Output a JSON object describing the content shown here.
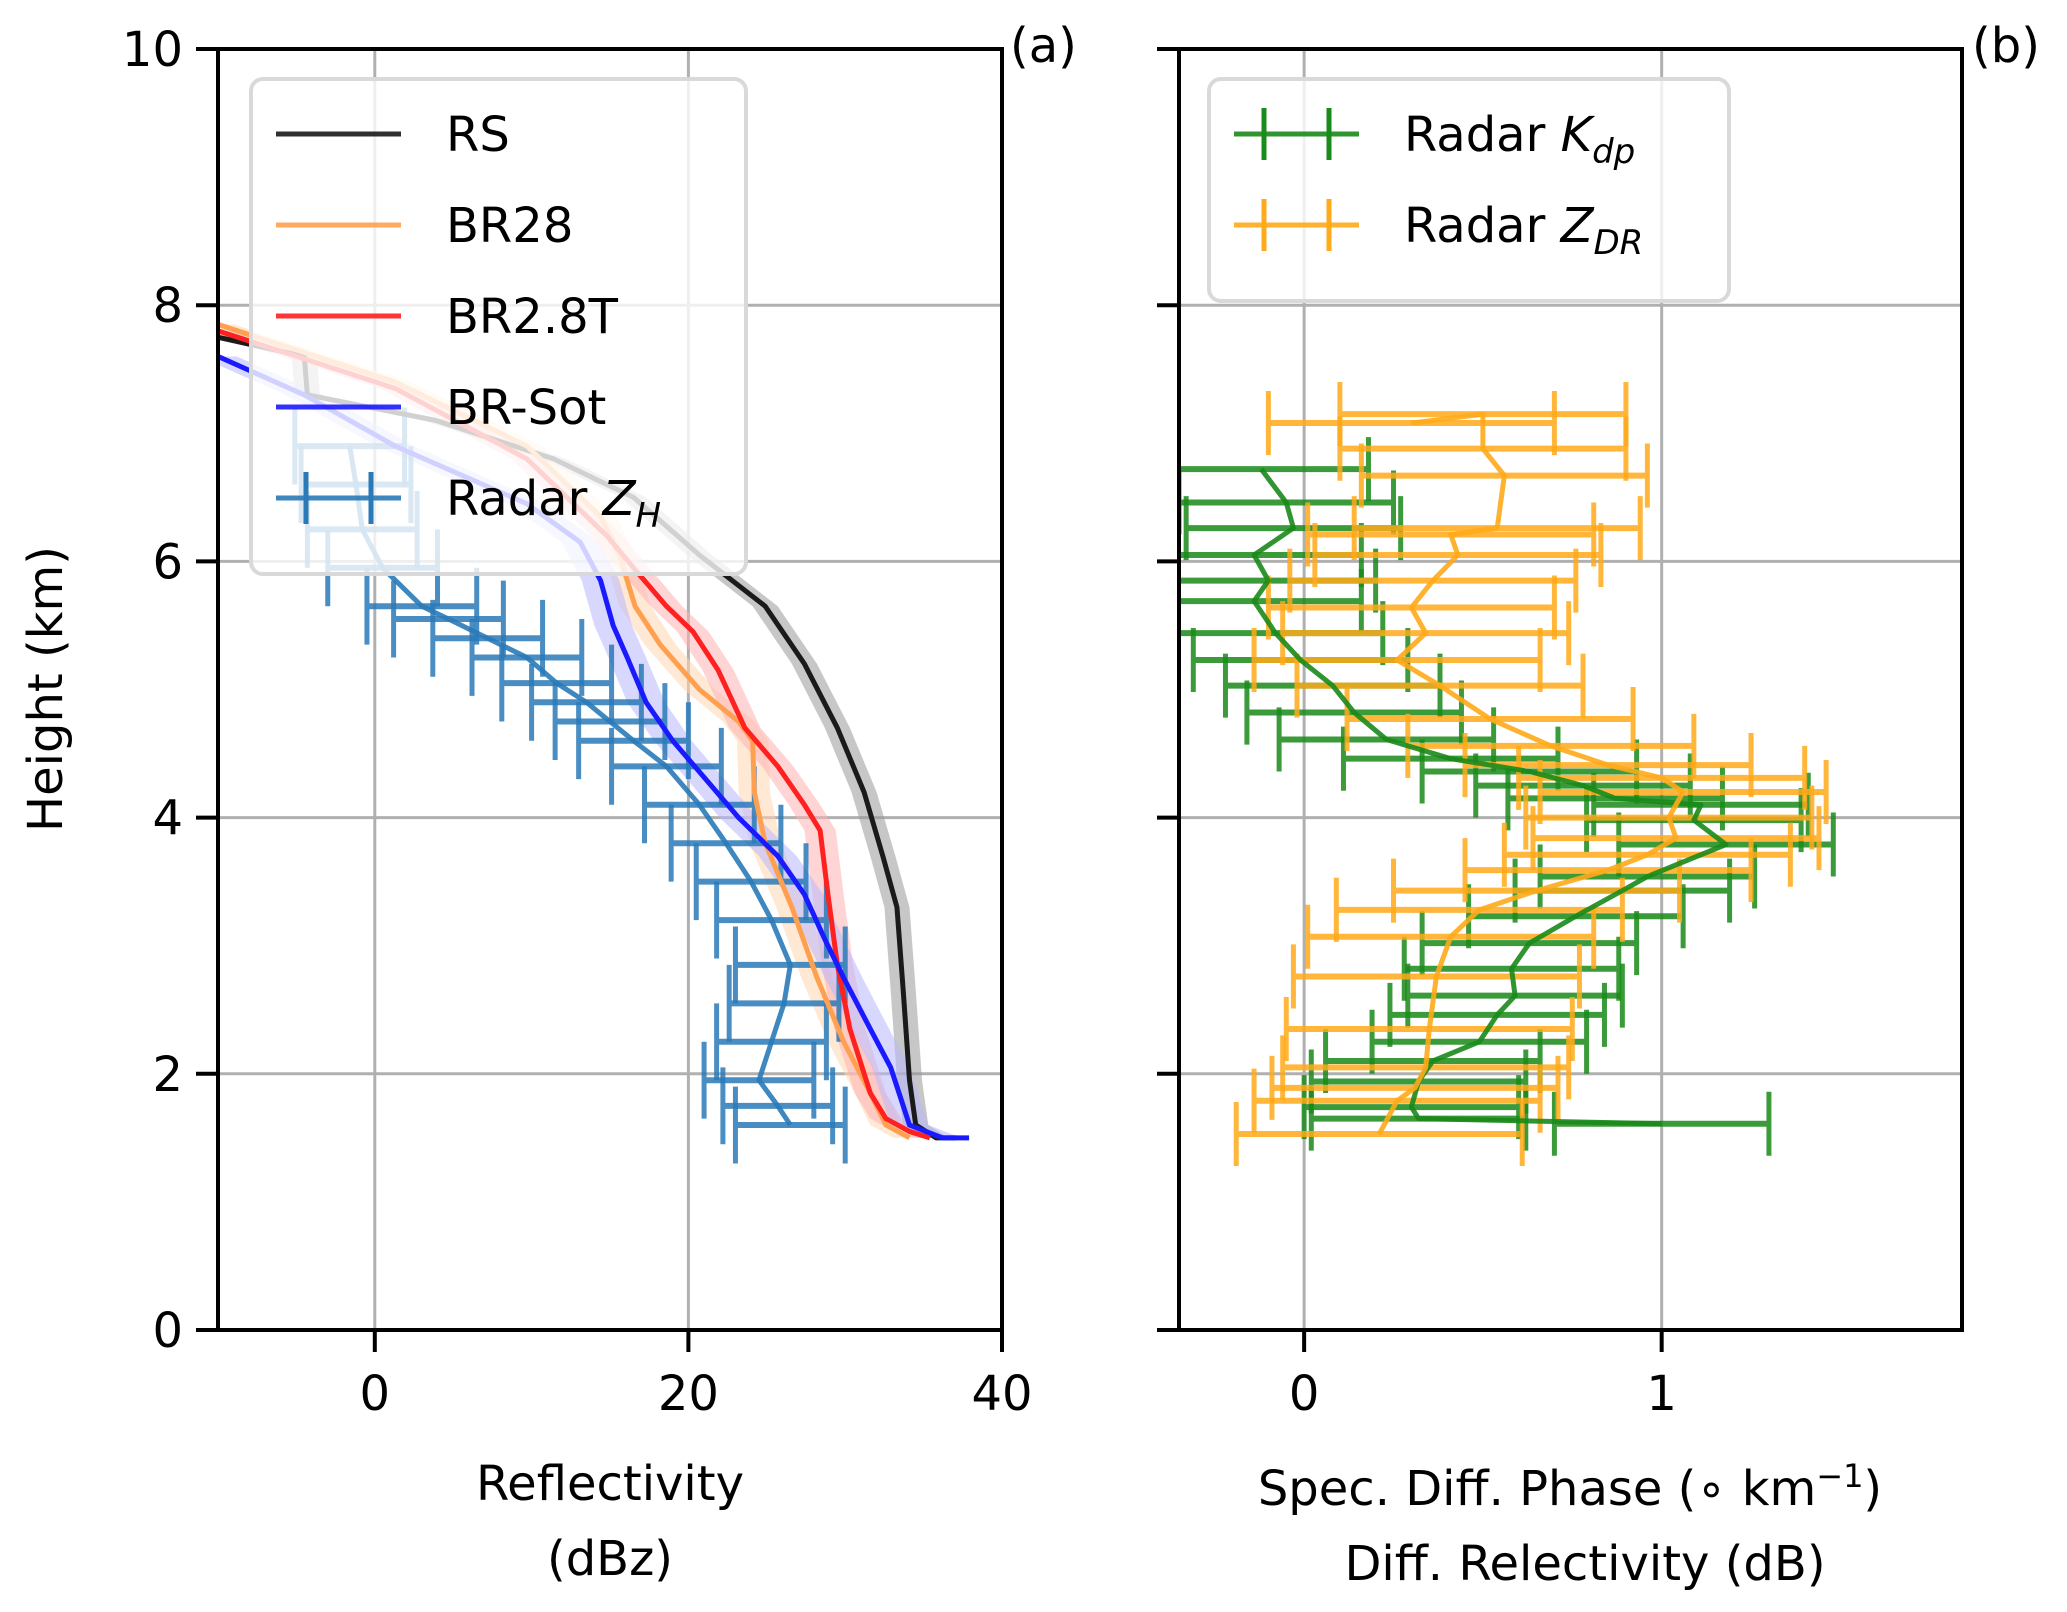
{
  "figure": {
    "panel_labels": [
      "(a)",
      "(b)"
    ]
  },
  "chart_data": [
    {
      "panel": "(a)",
      "type": "line",
      "title": "",
      "xlabel": "Reflectivity\n(dBz)",
      "ylabel": "Height (km)",
      "xlim": [
        -10,
        40
      ],
      "ylim": [
        0,
        10
      ],
      "xticks": [
        0,
        20,
        40
      ],
      "yticks": [
        0,
        2,
        4,
        6,
        8,
        10
      ],
      "grid": true,
      "legend_position": "top-left",
      "series": [
        {
          "name": "RS",
          "color": "#1a1a1a",
          "band_color": "#999999",
          "band_halfwidth": 0.8,
          "kind": "line",
          "x": [
            -10,
            -4.5,
            -4.3,
            3.9,
            11.4,
            16.5,
            20.7,
            24.9,
            27.4,
            29.5,
            31.2,
            32.4,
            33.3,
            33.7,
            34.1,
            34.5,
            35.8,
            37.1
          ],
          "y": [
            7.75,
            7.6,
            7.3,
            7.1,
            6.8,
            6.5,
            6.05,
            5.65,
            5.2,
            4.7,
            4.2,
            3.7,
            3.3,
            2.65,
            1.95,
            1.6,
            1.5,
            1.5
          ]
        },
        {
          "name": "BR28",
          "color": "#ffa050",
          "band_color": "#ffd6b0",
          "band_halfwidth": 1.0,
          "kind": "line",
          "x": [
            -10,
            1.3,
            9.7,
            14.4,
            15.6,
            16.6,
            18.2,
            20.7,
            23.2,
            24.1,
            24.2,
            24.9,
            26.6,
            28.2,
            29.9,
            31.6,
            32.6,
            34.1
          ],
          "y": [
            7.85,
            7.4,
            6.9,
            6.35,
            6.05,
            5.65,
            5.35,
            5.0,
            4.75,
            4.6,
            4.2,
            3.8,
            3.3,
            2.75,
            2.25,
            1.85,
            1.6,
            1.5
          ]
        },
        {
          "name": "BR2.8T",
          "color": "#ff2020",
          "band_color": "#ffb0b0",
          "band_halfwidth": 1.0,
          "kind": "line",
          "x": [
            -10,
            1.3,
            9.7,
            14.8,
            16.5,
            18.6,
            20.3,
            21.9,
            23.6,
            25.7,
            27.4,
            28.4,
            28.9,
            29.5,
            30.3,
            31.6,
            32.6,
            34.1,
            35.4
          ],
          "y": [
            7.8,
            7.35,
            6.8,
            6.2,
            5.95,
            5.65,
            5.45,
            5.15,
            4.7,
            4.4,
            4.1,
            3.9,
            3.4,
            2.85,
            2.35,
            1.85,
            1.65,
            1.55,
            1.5
          ]
        },
        {
          "name": "BR-Sot",
          "color": "#1a1aff",
          "band_color": "#b8b8ff",
          "band_halfwidth": 1.2,
          "kind": "line",
          "x": [
            -10,
            -4.5,
            1.3,
            9.7,
            13.1,
            14.4,
            15.2,
            16.1,
            17.3,
            19.0,
            21.1,
            23.2,
            25.7,
            27.4,
            28.7,
            29.9,
            31.6,
            32.9,
            33.7,
            34.1,
            36.2,
            37.9
          ],
          "y": [
            7.6,
            7.3,
            6.9,
            6.45,
            6.15,
            5.85,
            5.5,
            5.25,
            4.9,
            4.6,
            4.3,
            4.0,
            3.7,
            3.4,
            3.05,
            2.75,
            2.35,
            2.05,
            1.75,
            1.6,
            1.5,
            1.5
          ]
        },
        {
          "name": "Radar Z_H",
          "legend_label": "Radar",
          "legend_sub": "Z",
          "legend_subscript": "H",
          "color": "#2a7ab8",
          "kind": "errorbar",
          "xerr": 3.5,
          "yerr": 0.3,
          "x": [
            -1.6,
            -1.2,
            -0.8,
            0.5,
            3.0,
            4.7,
            7.2,
            9.7,
            11.6,
            13.5,
            15.0,
            16.5,
            18.6,
            20.7,
            22.4,
            24.0,
            25.3,
            26.5,
            26.1,
            25.3,
            24.5,
            25.7,
            26.5
          ],
          "y": [
            6.9,
            6.6,
            6.25,
            5.95,
            5.65,
            5.55,
            5.4,
            5.25,
            5.05,
            4.9,
            4.75,
            4.6,
            4.4,
            4.1,
            3.8,
            3.5,
            3.2,
            2.85,
            2.55,
            2.25,
            1.95,
            1.75,
            1.6
          ]
        }
      ]
    },
    {
      "panel": "(b)",
      "type": "line",
      "title": "",
      "xlabel": "Spec. Diff. Phase (° km⁻¹)\nDiff. Relectivity (dB)",
      "xlabel_line1_prefix": "Spec. Diff. Phase (",
      "xlabel_line1_unit": "∘ km",
      "xlabel_line1_sup": "−1",
      "xlabel_line1_suffix": ")",
      "xlabel_line2": "Diff. Relectivity (dB)",
      "ylabel": "",
      "xlim": [
        -0.35,
        1.84
      ],
      "ylim": [
        0,
        10
      ],
      "xticks": [
        0,
        1
      ],
      "yticks": [
        0,
        2,
        4,
        6,
        8,
        10
      ],
      "grid": true,
      "legend_position": "top-left",
      "series": [
        {
          "name": "Radar K_dp",
          "legend_label": "Radar",
          "legend_sub": "K",
          "legend_subscript": "dp",
          "color": "#1a8a1a",
          "kind": "errorbar",
          "xerr": 0.3,
          "yerr": 0.25,
          "x": [
            -0.12,
            -0.05,
            -0.03,
            -0.14,
            -0.1,
            -0.14,
            -0.08,
            -0.01,
            0.08,
            0.14,
            0.23,
            0.41,
            0.63,
            0.78,
            0.87,
            1.11,
            1.09,
            1.18,
            0.96,
            0.89,
            0.76,
            0.63,
            0.58,
            0.59,
            0.54,
            0.49,
            0.36,
            0.32,
            0.3,
            0.32,
            1.0
          ],
          "y": [
            6.72,
            6.46,
            6.26,
            6.05,
            5.85,
            5.69,
            5.44,
            5.23,
            5.03,
            4.82,
            4.61,
            4.46,
            4.36,
            4.25,
            4.15,
            4.1,
            3.98,
            3.79,
            3.54,
            3.43,
            3.23,
            3.02,
            2.82,
            2.61,
            2.46,
            2.25,
            2.1,
            1.94,
            1.74,
            1.65,
            1.61
          ]
        },
        {
          "name": "Radar Z_DR",
          "legend_label": "Radar",
          "legend_sub": "Z",
          "legend_subscript": "DR",
          "color": "#ffaa1a",
          "kind": "errorbar",
          "xerr": 0.4,
          "yerr": 0.25,
          "x": [
            0.3,
            0.5,
            0.5,
            0.56,
            0.54,
            0.41,
            0.43,
            0.36,
            0.3,
            0.34,
            0.26,
            0.38,
            0.52,
            0.69,
            0.85,
            1.0,
            1.06,
            1.02,
            1.04,
            0.96,
            0.85,
            0.65,
            0.49,
            0.41,
            0.37,
            0.35,
            0.34,
            0.31,
            0.26,
            0.21
          ],
          "y": [
            7.08,
            7.15,
            6.88,
            6.67,
            6.26,
            6.21,
            6.05,
            5.85,
            5.64,
            5.44,
            5.23,
            5.03,
            4.77,
            4.56,
            4.41,
            4.31,
            4.2,
            4.0,
            3.84,
            3.71,
            3.59,
            3.43,
            3.28,
            3.07,
            2.76,
            2.35,
            2.05,
            1.89,
            1.79,
            1.53
          ]
        }
      ]
    }
  ]
}
